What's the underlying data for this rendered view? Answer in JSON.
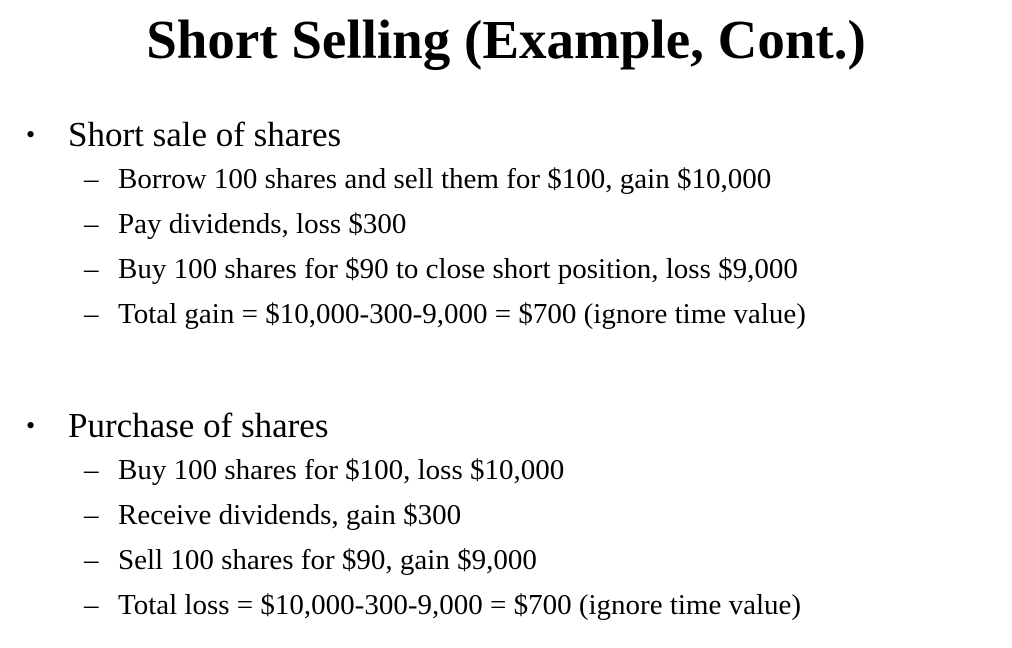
{
  "slide": {
    "title": "Short Selling (Example, Cont.)",
    "sections": [
      {
        "bullet_symbol": "•",
        "heading": "Short sale of shares",
        "items": [
          {
            "dash": "–",
            "text": "Borrow 100 shares and sell them for $100, gain $10,000"
          },
          {
            "dash": "–",
            "text": "Pay dividends, loss $300"
          },
          {
            "dash": "–",
            "text": "Buy 100 shares for $90 to close short position, loss $9,000"
          },
          {
            "dash": "–",
            "text": "Total gain = $10,000-300-9,000 = $700 (ignore time value)"
          }
        ]
      },
      {
        "bullet_symbol": "•",
        "heading": "Purchase of shares",
        "items": [
          {
            "dash": "–",
            "text": "Buy 100 shares for $100, loss $10,000"
          },
          {
            "dash": "–",
            "text": "Receive dividends, gain $300"
          },
          {
            "dash": "–",
            "text": "Sell 100 shares for $90, gain $9,000"
          },
          {
            "dash": "–",
            "text": "Total loss = $10,000-300-9,000 = $700 (ignore time value)"
          }
        ]
      }
    ]
  }
}
